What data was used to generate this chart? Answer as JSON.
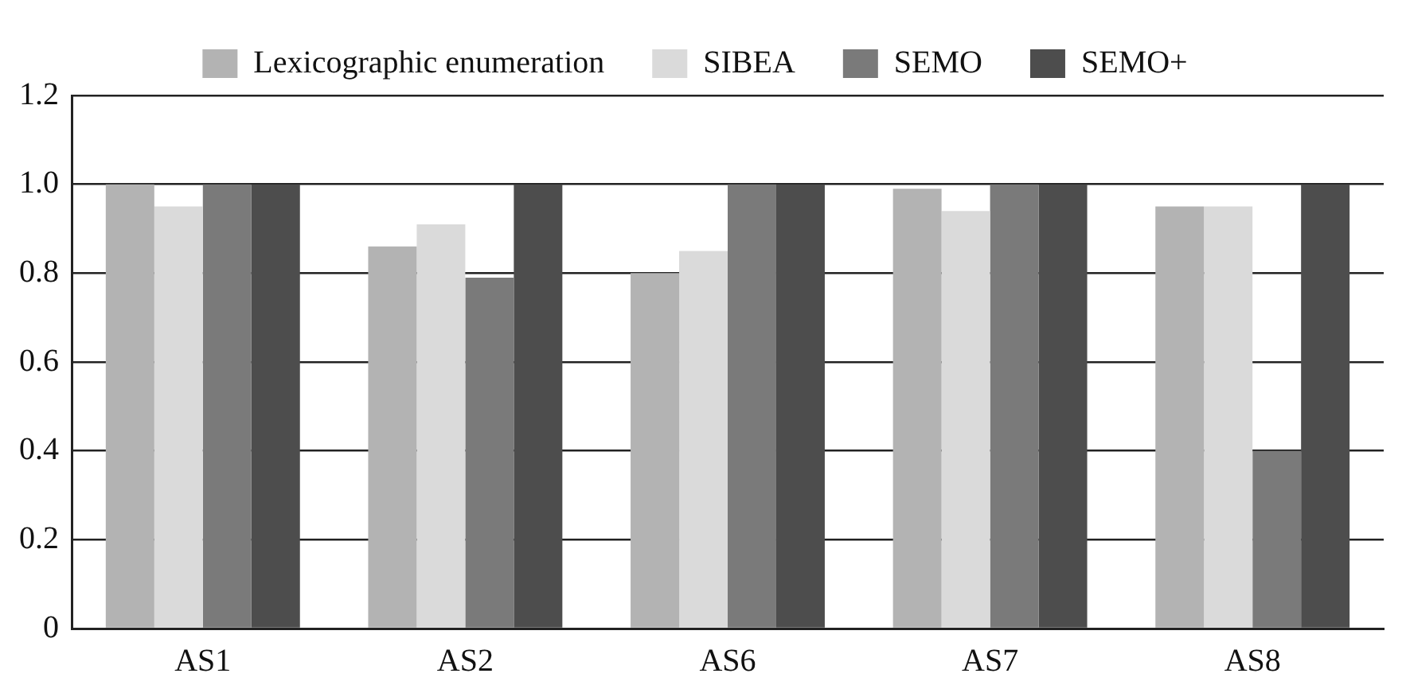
{
  "chart_data": {
    "type": "bar",
    "categories": [
      "AS1",
      "AS2",
      "AS6",
      "AS7",
      "AS8"
    ],
    "series": [
      {
        "name": "Lexicographic enumeration",
        "color": "#b3b3b3",
        "values": [
          1.0,
          0.86,
          0.8,
          0.99,
          0.95
        ]
      },
      {
        "name": "SIBEA",
        "color": "#dadada",
        "values": [
          0.95,
          0.91,
          0.85,
          0.94,
          0.95
        ]
      },
      {
        "name": "SEMO",
        "color": "#7a7a7a",
        "values": [
          1.0,
          0.79,
          1.0,
          1.0,
          0.4
        ]
      },
      {
        "name": "SEMO+",
        "color": "#4d4d4d",
        "values": [
          1.0,
          1.0,
          1.0,
          1.0,
          1.0
        ]
      }
    ],
    "ylim": [
      0,
      1.2
    ],
    "yticks": [
      {
        "value": 0,
        "label": "0"
      },
      0.2,
      0.4,
      0.6,
      0.8,
      {
        "value": 1,
        "label": "1.0"
      },
      1.2
    ],
    "grid": "y",
    "legend": "top"
  }
}
